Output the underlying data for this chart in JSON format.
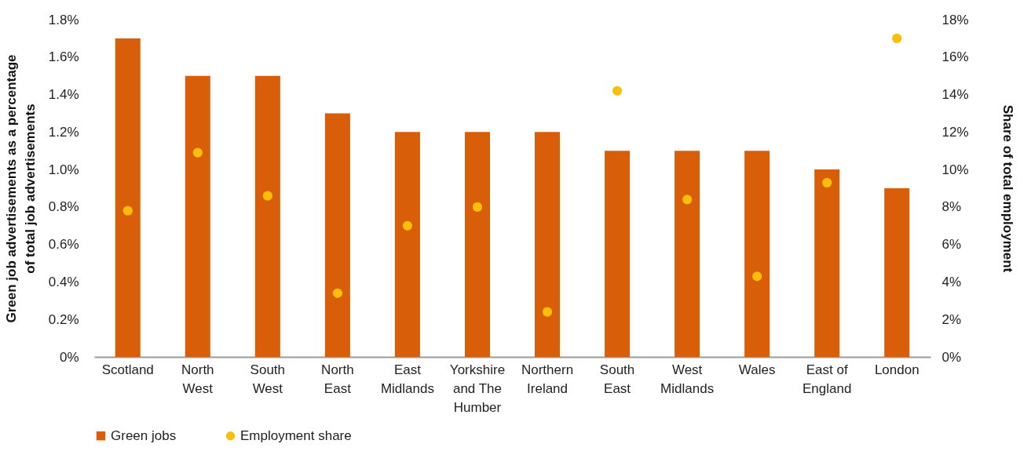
{
  "chart_data": {
    "type": "bar",
    "categories": [
      "Scotland",
      "North West",
      "South West",
      "North East",
      "East Midlands",
      "Yorkshire and The Humber",
      "Northern Ireland",
      "South East",
      "West Midlands",
      "Wales",
      "East of England",
      "London"
    ],
    "series": [
      {
        "name": "Green jobs",
        "color": "#d85e0a",
        "values": [
          1.7,
          1.5,
          1.5,
          1.3,
          1.2,
          1.2,
          1.2,
          1.1,
          1.1,
          1.1,
          1.0,
          0.9
        ]
      },
      {
        "name": "Employment share",
        "type": "scatter",
        "axis": "y2",
        "color": "#fbbf0a",
        "values": [
          7.8,
          10.9,
          8.6,
          3.4,
          7.0,
          8.0,
          2.4,
          14.2,
          8.4,
          4.3,
          9.3,
          17.0
        ]
      }
    ],
    "ylabel": "Green job advertisements as a percentage of total job advertisements",
    "y2label": "Share of total employment",
    "ylim": [
      0,
      1.8
    ],
    "yticks": [
      {
        "value": 0,
        "label": "0%"
      },
      {
        "value": 0.2,
        "label": "0.2%"
      },
      {
        "value": 0.4,
        "label": "0.4%"
      },
      {
        "value": 0.6,
        "label": "0.6%"
      },
      {
        "value": 0.8,
        "label": "0.8%"
      },
      {
        "value": 1.0,
        "label": "1.0%"
      },
      {
        "value": 1.2,
        "label": "1.2%"
      },
      {
        "value": 1.4,
        "label": "1.4%"
      },
      {
        "value": 1.6,
        "label": "1.6%"
      },
      {
        "value": 1.8,
        "label": "1.8%"
      }
    ],
    "y2lim": [
      0,
      18
    ],
    "y2ticks": [
      {
        "value": 0,
        "label": "0%"
      },
      {
        "value": 2,
        "label": "2%"
      },
      {
        "value": 4,
        "label": "4%"
      },
      {
        "value": 6,
        "label": "6%"
      },
      {
        "value": 8,
        "label": "8%"
      },
      {
        "value": 10,
        "label": "10%"
      },
      {
        "value": 12,
        "label": "12%"
      },
      {
        "value": 14,
        "label": "14%"
      },
      {
        "value": 16,
        "label": "16%"
      },
      {
        "value": 18,
        "label": "18%"
      }
    ],
    "grid": false,
    "legend": "bottom",
    "marker": "circle"
  }
}
